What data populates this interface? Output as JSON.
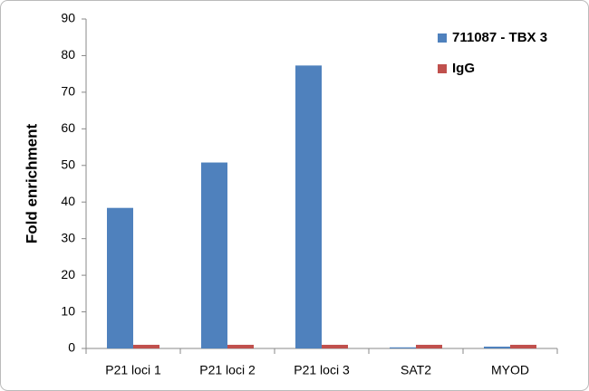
{
  "chart_data": {
    "type": "bar",
    "y_label": "Fold enrichment",
    "categories": [
      "P21 loci 1",
      "P21 loci 2",
      "P21 loci 3",
      "SAT2",
      "MYOD"
    ],
    "series": [
      {
        "name": "711087 - TBX 3",
        "color": "#4f81bd",
        "values": [
          38.4,
          50.8,
          77.3,
          0.3,
          0.5
        ]
      },
      {
        "name": "IgG",
        "color": "#c0504d",
        "values": [
          1,
          1,
          1,
          1,
          1
        ]
      }
    ],
    "ylim": [
      0,
      90
    ],
    "yticks": [
      0,
      10,
      20,
      30,
      40,
      50,
      60,
      70,
      80,
      90
    ],
    "legend": "top-right"
  }
}
